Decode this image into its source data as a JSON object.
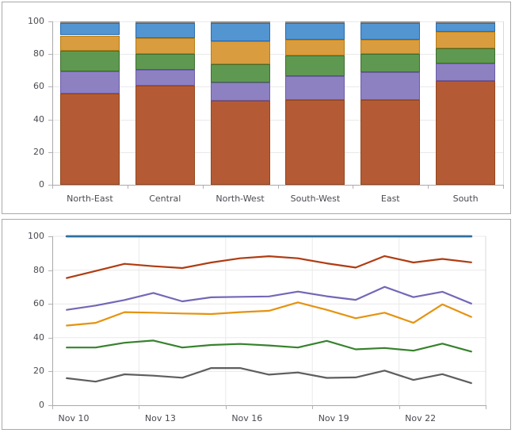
{
  "chart_data": [
    {
      "type": "bar",
      "variant": "stacked-column",
      "title": "",
      "categories": [
        "North-East",
        "Central",
        "North-West",
        "South-West",
        "East",
        "South"
      ],
      "series": [
        {
          "name": "rust",
          "color": "#b45b35",
          "border": "#94451d",
          "values": [
            56,
            60.5,
            51.5,
            52,
            52,
            63.5
          ]
        },
        {
          "name": "purple",
          "color": "#8e81c2",
          "border": "#6b5ca8",
          "values": [
            13.5,
            10,
            11,
            14.5,
            17,
            11
          ]
        },
        {
          "name": "green",
          "color": "#5f9951",
          "border": "#3f6e30",
          "values": [
            12.5,
            9.5,
            11.5,
            12.5,
            11,
            9
          ]
        },
        {
          "name": "orange",
          "color": "#d99c3e",
          "border": "#b67d14",
          "values": [
            9.5,
            10,
            14,
            10,
            9,
            10
          ]
        },
        {
          "name": "blue",
          "color": "#5295d1",
          "border": "#2a6cad",
          "values": [
            7.5,
            9,
            11,
            10,
            10,
            5.5
          ]
        },
        {
          "name": "gray",
          "color": "#a6a6a6",
          "border": "#8c8c8c",
          "values": [
            1,
            1,
            1,
            1,
            1,
            1
          ]
        }
      ],
      "ylim": [
        0,
        100
      ],
      "yticks": [
        0,
        20,
        40,
        60,
        80,
        100
      ],
      "grid": "horizontal",
      "legend": "none",
      "axis_color": "#a9a9a9",
      "grid_color": "#e9e9e9",
      "text_color": "#4a4a52"
    },
    {
      "type": "line",
      "title": "",
      "x": [
        "Nov 10",
        "Nov 11",
        "Nov 12",
        "Nov 13",
        "Nov 14",
        "Nov 15",
        "Nov 16",
        "Nov 17",
        "Nov 18",
        "Nov 19",
        "Nov 20",
        "Nov 21",
        "Nov 22",
        "Nov 23",
        "Nov 24"
      ],
      "x_tick_labels": [
        "Nov 10",
        "Nov 13",
        "Nov 16",
        "Nov 19",
        "Nov 22"
      ],
      "x_label_step": 3,
      "series": [
        {
          "name": "blue",
          "color": "#2e6f9e",
          "values": [
            100,
            100,
            100,
            100,
            100,
            100,
            100,
            100,
            100,
            100,
            100,
            100,
            100,
            100,
            100
          ]
        },
        {
          "name": "red",
          "color": "#b03c12",
          "values": [
            75.3,
            79.5,
            83.7,
            82.3,
            81.2,
            84.5,
            87,
            88.2,
            87,
            84,
            81.5,
            88.3,
            84.5,
            86.6,
            84.6
          ]
        },
        {
          "name": "purple",
          "color": "#7467b6",
          "values": [
            56.5,
            59,
            62.3,
            66.5,
            61.5,
            63.9,
            64.2,
            64.4,
            67.3,
            64.5,
            62.4,
            70.1,
            64,
            67.2,
            60.2
          ]
        },
        {
          "name": "orange",
          "color": "#e5930f",
          "values": [
            47.2,
            48.8,
            55.1,
            54.8,
            54.3,
            54,
            55.1,
            55.9,
            60.9,
            56.5,
            51.5,
            54.8,
            48.8,
            59.7,
            52.3
          ]
        },
        {
          "name": "green",
          "color": "#37822d",
          "values": [
            34.2,
            34.2,
            37,
            38.3,
            34.2,
            35.7,
            36.3,
            35.4,
            34.2,
            38.1,
            33.1,
            33.9,
            32.3,
            36.5,
            31.8
          ]
        },
        {
          "name": "gray",
          "color": "#5e5e5e",
          "values": [
            16,
            14,
            18.3,
            17.5,
            16.3,
            22,
            22,
            18.1,
            19.4,
            16.2,
            16.5,
            20.5,
            15,
            18.4,
            13.1
          ]
        }
      ],
      "ylim": [
        0,
        100
      ],
      "yticks": [
        0,
        20,
        40,
        60,
        80,
        100
      ],
      "grid": "both",
      "legend": "none",
      "axis_color": "#a9a9a9",
      "grid_color": "#e9e9e9",
      "text_color": "#4a4a52"
    }
  ]
}
